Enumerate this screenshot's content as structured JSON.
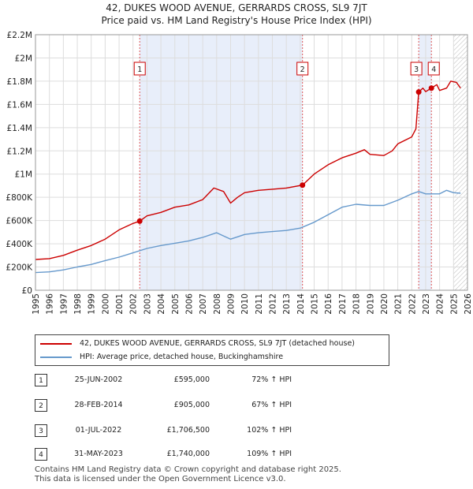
{
  "chart_data": {
    "type": "line",
    "title": "42, DUKES WOOD AVENUE, GERRARDS CROSS, SL9 7JT",
    "subtitle": "Price paid vs. HM Land Registry's House Price Index (HPI)",
    "xlim": [
      1995,
      2026
    ],
    "ylim": [
      0,
      2200000
    ],
    "x_ticks": [
      "1995",
      "1996",
      "1997",
      "1998",
      "1999",
      "2000",
      "2001",
      "2002",
      "2003",
      "2004",
      "2005",
      "2006",
      "2007",
      "2008",
      "2009",
      "2010",
      "2011",
      "2012",
      "2013",
      "2014",
      "2015",
      "2016",
      "2017",
      "2018",
      "2019",
      "2020",
      "2021",
      "2022",
      "2023",
      "2024",
      "2025",
      "2026"
    ],
    "y_ticks": [
      {
        "label": "£0",
        "value": 0
      },
      {
        "label": "£200K",
        "value": 200000
      },
      {
        "label": "£400K",
        "value": 400000
      },
      {
        "label": "£600K",
        "value": 600000
      },
      {
        "label": "£800K",
        "value": 800000
      },
      {
        "label": "£1M",
        "value": 1000000
      },
      {
        "label": "£1.2M",
        "value": 1200000
      },
      {
        "label": "£1.4M",
        "value": 1400000
      },
      {
        "label": "£1.6M",
        "value": 1600000
      },
      {
        "label": "£1.8M",
        "value": 1800000
      },
      {
        "label": "£2M",
        "value": 2000000
      },
      {
        "label": "£2.2M",
        "value": 2200000
      }
    ],
    "grid": true,
    "highlight_spans": [
      [
        2002.48,
        2014.16
      ],
      [
        2022.5,
        2023.41
      ]
    ],
    "future_hatch_from": 2025.0,
    "series": [
      {
        "name": "42, DUKES WOOD AVENUE, GERRARDS CROSS, SL9 7JT (detached house)",
        "color": "#cc0000",
        "points": [
          [
            1995,
            265000
          ],
          [
            1996,
            272000
          ],
          [
            1997,
            300000
          ],
          [
            1998,
            345000
          ],
          [
            1999,
            385000
          ],
          [
            2000,
            440000
          ],
          [
            2001,
            520000
          ],
          [
            2002,
            575000
          ],
          [
            2002.48,
            595000
          ],
          [
            2003,
            640000
          ],
          [
            2004,
            670000
          ],
          [
            2005,
            715000
          ],
          [
            2006,
            735000
          ],
          [
            2007,
            780000
          ],
          [
            2007.8,
            880000
          ],
          [
            2008.5,
            850000
          ],
          [
            2009.0,
            750000
          ],
          [
            2009.5,
            800000
          ],
          [
            2010,
            840000
          ],
          [
            2011,
            860000
          ],
          [
            2012,
            870000
          ],
          [
            2013,
            880000
          ],
          [
            2014.16,
            905000
          ],
          [
            2015,
            1000000
          ],
          [
            2016,
            1080000
          ],
          [
            2017,
            1140000
          ],
          [
            2018,
            1180000
          ],
          [
            2018.6,
            1210000
          ],
          [
            2019,
            1170000
          ],
          [
            2020,
            1160000
          ],
          [
            2020.6,
            1200000
          ],
          [
            2021,
            1260000
          ],
          [
            2022.0,
            1320000
          ],
          [
            2022.3,
            1390000
          ],
          [
            2022.5,
            1706500
          ],
          [
            2022.8,
            1740000
          ],
          [
            2023.0,
            1710000
          ],
          [
            2023.41,
            1740000
          ],
          [
            2023.8,
            1770000
          ],
          [
            2024,
            1720000
          ],
          [
            2024.5,
            1740000
          ],
          [
            2024.8,
            1800000
          ],
          [
            2025.2,
            1790000
          ],
          [
            2025.5,
            1740000
          ]
        ]
      },
      {
        "name": "HPI: Average price, detached house, Buckinghamshire",
        "color": "#6699cc",
        "points": [
          [
            1995,
            152000
          ],
          [
            1996,
            158000
          ],
          [
            1997,
            175000
          ],
          [
            1998,
            200000
          ],
          [
            1999,
            222000
          ],
          [
            2000,
            255000
          ],
          [
            2001,
            285000
          ],
          [
            2002,
            322000
          ],
          [
            2003,
            360000
          ],
          [
            2004,
            385000
          ],
          [
            2005,
            405000
          ],
          [
            2006,
            425000
          ],
          [
            2007,
            455000
          ],
          [
            2008,
            495000
          ],
          [
            2009.0,
            440000
          ],
          [
            2009.5,
            460000
          ],
          [
            2010,
            480000
          ],
          [
            2011,
            495000
          ],
          [
            2012,
            505000
          ],
          [
            2013,
            515000
          ],
          [
            2014,
            535000
          ],
          [
            2015,
            585000
          ],
          [
            2016,
            650000
          ],
          [
            2017,
            715000
          ],
          [
            2018,
            740000
          ],
          [
            2019,
            730000
          ],
          [
            2020,
            730000
          ],
          [
            2021,
            775000
          ],
          [
            2022,
            830000
          ],
          [
            2022.5,
            850000
          ],
          [
            2023,
            830000
          ],
          [
            2024,
            830000
          ],
          [
            2024.5,
            860000
          ],
          [
            2025.0,
            840000
          ],
          [
            2025.5,
            835000
          ]
        ]
      }
    ],
    "sale_markers": [
      {
        "label": "1",
        "x": 2002.48,
        "value": 595000
      },
      {
        "label": "2",
        "x": 2014.16,
        "value": 905000
      },
      {
        "label": "3",
        "x": 2022.5,
        "value": 1706500
      },
      {
        "label": "4",
        "x": 2023.41,
        "value": 1740000
      }
    ]
  },
  "legend": {
    "property_label": "42, DUKES WOOD AVENUE, GERRARDS CROSS, SL9 7JT (detached house)",
    "hpi_label": "HPI: Average price, detached house, Buckinghamshire",
    "property_color": "#cc0000",
    "hpi_color": "#6699cc"
  },
  "sales": [
    {
      "num": "1",
      "date": "25-JUN-2002",
      "price": "£595,000",
      "hpi": "72% ↑ HPI"
    },
    {
      "num": "2",
      "date": "28-FEB-2014",
      "price": "£905,000",
      "hpi": "67% ↑ HPI"
    },
    {
      "num": "3",
      "date": "01-JUL-2022",
      "price": "£1,706,500",
      "hpi": "102% ↑ HPI"
    },
    {
      "num": "4",
      "date": "31-MAY-2023",
      "price": "£1,740,000",
      "hpi": "109% ↑ HPI"
    }
  ],
  "footer": {
    "line1": "Contains HM Land Registry data © Crown copyright and database right 2025.",
    "line2": "This data is licensed under the Open Government Licence v3.0."
  }
}
